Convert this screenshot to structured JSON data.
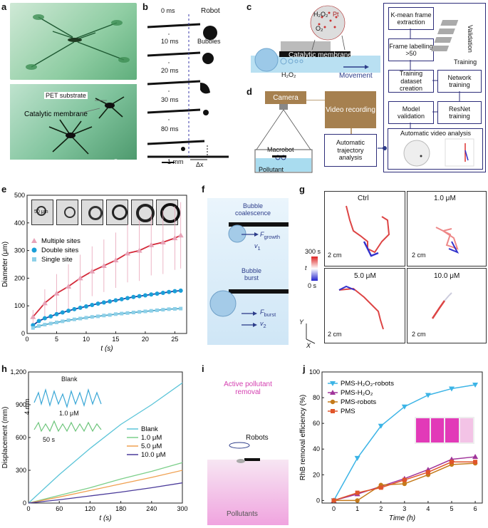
{
  "panels": {
    "a": {
      "label": "a",
      "pet_substrate": "PET substrate",
      "catalytic_membrane": "Catalytic membrane",
      "scale": "5 mm"
    },
    "b": {
      "label": "b",
      "times": [
        "0 ms",
        "10 ms",
        "20 ms",
        "30 ms",
        "80 ms"
      ],
      "robot": "Robot",
      "bubbles": "Bubbles",
      "scale": "1 mm",
      "dx": "Δx"
    },
    "c": {
      "label": "c",
      "h2o2_top": "H₂O₂",
      "o2": "O₂",
      "pt": "Pt",
      "membrane": "Catalytic membrane",
      "h2o2_bottom": "H₂O₂",
      "movement": "Movement"
    },
    "d": {
      "label": "d",
      "camera": "Camera",
      "video_recording": "Video recording",
      "macrobot": "Macrobot",
      "pollutant": "Pollutant",
      "auto_traj": "Automatic trajectory analysis"
    },
    "pipeline": {
      "kmean": "K-mean frame extraction",
      "labelling": "Frame labelling >50",
      "dataset": "Training dataset creation",
      "model": "Model validation",
      "network": "Network training",
      "resnet": "ResNet training",
      "auto_video": "Automatic video analysis",
      "validation": "Validation",
      "training": "Training"
    },
    "e": {
      "label": "e",
      "scale": "50 μm",
      "legend": [
        "Multiple sites",
        "Double sites",
        "Single site"
      ],
      "xlabel": "t (s)",
      "ylabel": "Diameter (μm)"
    },
    "f": {
      "label": "f",
      "coalescence": "Bubble coalescence",
      "f_growth": "F",
      "f_growth_sub": "growth",
      "v1": "v",
      "v1_sub": "1",
      "burst": "Bubble burst",
      "f_burst": "F",
      "f_burst_sub": "burst",
      "v2": "v",
      "v2_sub": "2"
    },
    "g": {
      "label": "g",
      "panels": [
        "Ctrl",
        "1.0 μM",
        "5.0 μM",
        "10.0 μM"
      ],
      "scale": "2 cm",
      "cbar_top": "300 s",
      "cbar_mid": "t",
      "cbar_bot": "0 s",
      "axis_y": "Y",
      "axis_x": "X"
    },
    "h": {
      "label": "h",
      "blank": "Blank",
      "conc": "1.0 μM",
      "scale_v": "4 mm",
      "scale_h": "50 s",
      "legend": [
        "Blank",
        "1.0 μM",
        "5.0 μM",
        "10.0 μM"
      ],
      "xlabel": "t (s)",
      "ylabel": "Displacement (mm)"
    },
    "i": {
      "label": "i",
      "active": "Active pollutant removal",
      "robots": "Robots",
      "pollutants": "Pollutants"
    },
    "j": {
      "label": "j",
      "legend": [
        "PMS-H₂O₂-robots",
        "PMS-H₂O₂",
        "PMS-robots",
        "PMS"
      ],
      "xlabel": "Time (h)",
      "ylabel": "RhB removal efficiency (%)"
    }
  },
  "chart_data": [
    {
      "type": "scatter",
      "panel": "e",
      "xlabel": "t (s)",
      "ylabel": "Diameter (μm)",
      "xlim": [
        0,
        27
      ],
      "ylim": [
        0,
        500
      ],
      "xticks": [
        0,
        5,
        10,
        15,
        20,
        25
      ],
      "yticks": [
        0,
        100,
        200,
        300,
        400,
        500
      ],
      "series": [
        {
          "name": "Multiple sites",
          "color": "#e8a3b8",
          "fit_color": "#d42a3a",
          "x": [
            1,
            3,
            5,
            7,
            9,
            11,
            13,
            15,
            17,
            19,
            21,
            23,
            25,
            26
          ],
          "y": [
            60,
            110,
            145,
            170,
            200,
            225,
            245,
            265,
            290,
            300,
            320,
            330,
            345,
            355
          ],
          "err": [
            25,
            50,
            70,
            80,
            85,
            90,
            95,
            100,
            105,
            110,
            110,
            115,
            115,
            120
          ]
        },
        {
          "name": "Double sites",
          "color": "#1a9fd8",
          "fit_color": "#1a3f9a",
          "x": [
            1,
            2,
            3,
            4,
            5,
            6,
            7,
            8,
            9,
            10,
            11,
            12,
            13,
            14,
            15,
            16,
            17,
            18,
            19,
            20,
            21,
            22,
            23,
            24,
            25,
            26
          ],
          "y": [
            30,
            45,
            55,
            62,
            70,
            76,
            82,
            88,
            93,
            98,
            103,
            108,
            112,
            116,
            120,
            124,
            128,
            132,
            135,
            138,
            141,
            144,
            147,
            150,
            153,
            155
          ],
          "err": [
            6,
            6,
            6,
            6,
            6,
            6,
            6,
            6,
            6,
            6,
            6,
            6,
            6,
            6,
            6,
            6,
            6,
            6,
            6,
            6,
            6,
            6,
            6,
            6,
            6,
            6
          ]
        },
        {
          "name": "Single site",
          "color": "#8dd0e8",
          "fit_color": "#4ba6c8",
          "x": [
            1,
            2,
            3,
            4,
            5,
            6,
            7,
            8,
            9,
            10,
            11,
            12,
            13,
            14,
            15,
            16,
            17,
            18,
            19,
            20,
            21,
            22,
            23,
            24,
            25,
            26
          ],
          "y": [
            20,
            27,
            32,
            36,
            40,
            44,
            48,
            51,
            54,
            57,
            60,
            62,
            65,
            67,
            70,
            72,
            74,
            76,
            78,
            80,
            82,
            84,
            86,
            88,
            89,
            90
          ],
          "err": [
            4,
            4,
            4,
            4,
            4,
            4,
            4,
            4,
            4,
            4,
            4,
            4,
            4,
            4,
            4,
            4,
            4,
            4,
            4,
            4,
            4,
            4,
            4,
            4,
            4,
            4
          ]
        }
      ]
    },
    {
      "type": "line",
      "panel": "h",
      "xlabel": "t (s)",
      "ylabel": "Displacement (mm)",
      "xlim": [
        0,
        300
      ],
      "ylim": [
        0,
        1200
      ],
      "xticks": [
        0,
        60,
        120,
        180,
        240,
        300
      ],
      "yticks": [
        0,
        300,
        600,
        900,
        1200
      ],
      "ytick_labels": [
        "0",
        "300",
        "600",
        "900",
        "1,200"
      ],
      "series": [
        {
          "name": "Blank",
          "color": "#5bc4d8",
          "x": [
            0,
            60,
            120,
            180,
            240,
            300
          ],
          "y": [
            0,
            260,
            500,
            720,
            900,
            1100
          ]
        },
        {
          "name": "1.0 μM",
          "color": "#7ccf8a",
          "x": [
            0,
            60,
            120,
            180,
            240,
            300
          ],
          "y": [
            0,
            70,
            140,
            220,
            290,
            370
          ]
        },
        {
          "name": "5.0 μM",
          "color": "#f0a050",
          "x": [
            0,
            60,
            120,
            180,
            240,
            300
          ],
          "y": [
            0,
            55,
            115,
            175,
            235,
            300
          ]
        },
        {
          "name": "10.0 μM",
          "color": "#4a3a9a",
          "x": [
            0,
            60,
            120,
            180,
            240,
            300
          ],
          "y": [
            0,
            30,
            65,
            100,
            140,
            185
          ]
        }
      ]
    },
    {
      "type": "line",
      "panel": "j",
      "xlabel": "Time (h)",
      "ylabel": "RhB removal efficiency (%)",
      "xlim": [
        -0.5,
        6.3
      ],
      "ylim": [
        -2,
        100
      ],
      "xticks": [
        0,
        1,
        2,
        3,
        4,
        5,
        6
      ],
      "yticks": [
        0,
        20,
        40,
        60,
        80,
        100
      ],
      "series": [
        {
          "name": "PMS-H₂O₂-robots",
          "color": "#3cb4e6",
          "marker": "triangle-down",
          "x": [
            0,
            1,
            2,
            3,
            4,
            5,
            6
          ],
          "y": [
            0,
            33,
            58,
            73,
            82,
            87,
            90
          ]
        },
        {
          "name": "PMS-H₂O₂",
          "color": "#a0349a",
          "marker": "triangle-up",
          "x": [
            0,
            1,
            2,
            3,
            4,
            5,
            6
          ],
          "y": [
            0,
            5,
            11,
            17,
            24,
            32,
            34
          ]
        },
        {
          "name": "PMS-robots",
          "color": "#c57a1a",
          "marker": "circle",
          "x": [
            0,
            1,
            2,
            3,
            4,
            5,
            6
          ],
          "y": [
            0,
            0,
            12,
            13,
            20,
            28,
            29
          ]
        },
        {
          "name": "PMS",
          "color": "#e0552a",
          "marker": "square",
          "x": [
            0,
            1,
            2,
            3,
            4,
            5,
            6
          ],
          "y": [
            0,
            6,
            10,
            16,
            22,
            30,
            30
          ]
        }
      ]
    }
  ]
}
